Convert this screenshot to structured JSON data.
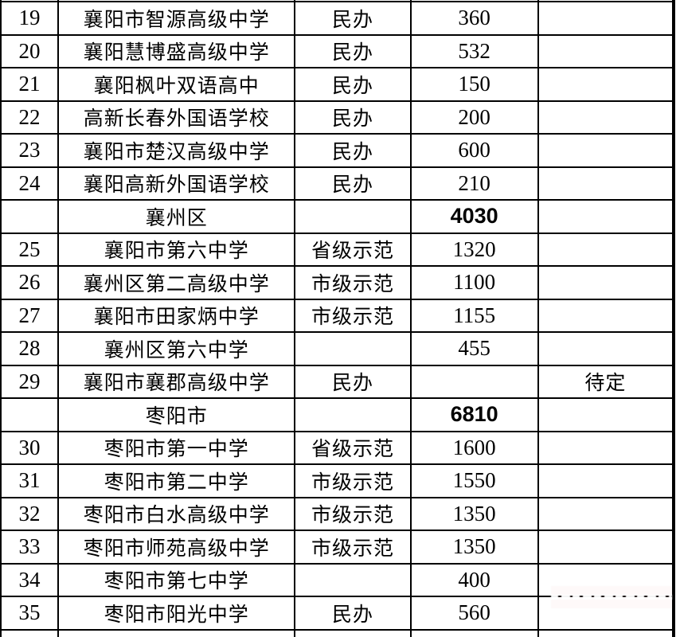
{
  "colors": {
    "background": "#ffffff",
    "border": "#000000",
    "text": "#000000"
  },
  "table": {
    "rows": [
      {
        "no": "19",
        "school": "襄阳市智源高级中学",
        "type": "民办",
        "count": "360",
        "remark": "",
        "group": false
      },
      {
        "no": "20",
        "school": "襄阳慧博盛高级中学",
        "type": "民办",
        "count": "532",
        "remark": "",
        "group": false
      },
      {
        "no": "21",
        "school": "襄阳枫叶双语高中",
        "type": "民办",
        "count": "150",
        "remark": "",
        "group": false
      },
      {
        "no": "22",
        "school": "高新长春外国语学校",
        "type": "民办",
        "count": "200",
        "remark": "",
        "group": false
      },
      {
        "no": "23",
        "school": "襄阳市楚汉高级中学",
        "type": "民办",
        "count": "600",
        "remark": "",
        "group": false
      },
      {
        "no": "24",
        "school": "襄阳高新外国语学校",
        "type": "民办",
        "count": "210",
        "remark": "",
        "group": false
      },
      {
        "no": "",
        "school": "襄州区",
        "type": "",
        "count": "4030",
        "remark": "",
        "group": true
      },
      {
        "no": "25",
        "school": "襄阳市第六中学",
        "type": "省级示范",
        "count": "1320",
        "remark": "",
        "group": false
      },
      {
        "no": "26",
        "school": "襄州区第二高级中学",
        "type": "市级示范",
        "count": "1100",
        "remark": "",
        "group": false
      },
      {
        "no": "27",
        "school": "襄阳市田家炳中学",
        "type": "市级示范",
        "count": "1155",
        "remark": "",
        "group": false
      },
      {
        "no": "28",
        "school": "襄州区第六中学",
        "type": "",
        "count": "455",
        "remark": "",
        "group": false
      },
      {
        "no": "29",
        "school": "襄阳市襄郡高级中学",
        "type": "民办",
        "count": "",
        "remark": "待定",
        "group": false
      },
      {
        "no": "",
        "school": "枣阳市",
        "type": "",
        "count": "6810",
        "remark": "",
        "group": true
      },
      {
        "no": "30",
        "school": "枣阳市第一中学",
        "type": "省级示范",
        "count": "1600",
        "remark": "",
        "group": false
      },
      {
        "no": "31",
        "school": "枣阳市第二中学",
        "type": "市级示范",
        "count": "1550",
        "remark": "",
        "group": false
      },
      {
        "no": "32",
        "school": "枣阳市白水高级中学",
        "type": "市级示范",
        "count": "1350",
        "remark": "",
        "group": false
      },
      {
        "no": "33",
        "school": "枣阳市师苑高级中学",
        "type": "市级示范",
        "count": "1350",
        "remark": "",
        "group": false
      },
      {
        "no": "34",
        "school": "枣阳市第七中学",
        "type": "",
        "count": "400",
        "remark": "",
        "group": false
      },
      {
        "no": "35",
        "school": "枣阳市阳光中学",
        "type": "民办",
        "count": "560",
        "remark": "",
        "group": false
      }
    ]
  }
}
